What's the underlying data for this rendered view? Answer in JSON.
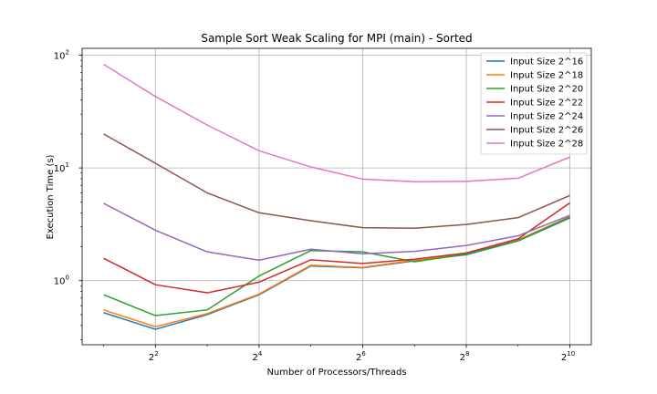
{
  "chart_data": {
    "type": "line",
    "title": "Sample Sort Weak Scaling for MPI (main) - Sorted",
    "xlabel": "Number of Processors/Threads",
    "ylabel": "Execution Time (s)",
    "x_scale": "log2",
    "y_scale": "log10",
    "xlim": [
      1.5,
      1363
    ],
    "ylim": [
      0.27,
      115
    ],
    "grid": true,
    "legend_position": "upper right",
    "x": [
      2,
      4,
      8,
      16,
      32,
      64,
      128,
      256,
      512,
      1024
    ],
    "x_ticks": [
      {
        "value": 4,
        "base": "2",
        "exp": "2"
      },
      {
        "value": 16,
        "base": "2",
        "exp": "4"
      },
      {
        "value": 64,
        "base": "2",
        "exp": "6"
      },
      {
        "value": 256,
        "base": "2",
        "exp": "8"
      },
      {
        "value": 1024,
        "base": "2",
        "exp": "10"
      }
    ],
    "y_ticks": [
      {
        "value": 1,
        "base": "10",
        "exp": "0"
      },
      {
        "value": 10,
        "base": "10",
        "exp": "1"
      },
      {
        "value": 100,
        "base": "10",
        "exp": "2"
      }
    ],
    "series": [
      {
        "name": "Input Size 2^16",
        "color": "#1f77b4",
        "values": [
          0.52,
          0.37,
          0.5,
          0.75,
          1.35,
          1.3,
          1.5,
          1.7,
          2.25,
          3.6
        ]
      },
      {
        "name": "Input Size 2^18",
        "color": "#ff7f0e",
        "values": [
          0.55,
          0.39,
          0.51,
          0.76,
          1.37,
          1.31,
          1.52,
          1.73,
          2.3,
          3.7
        ]
      },
      {
        "name": "Input Size 2^20",
        "color": "#2ca02c",
        "values": [
          0.75,
          0.49,
          0.55,
          1.1,
          1.85,
          1.8,
          1.47,
          1.72,
          2.26,
          3.65
        ]
      },
      {
        "name": "Input Size 2^22",
        "color": "#d62728",
        "values": [
          1.58,
          0.92,
          0.78,
          0.97,
          1.53,
          1.42,
          1.55,
          1.76,
          2.35,
          4.9
        ]
      },
      {
        "name": "Input Size 2^24",
        "color": "#9467bd",
        "values": [
          4.85,
          2.8,
          1.8,
          1.52,
          1.9,
          1.73,
          1.82,
          2.05,
          2.5,
          3.8
        ]
      },
      {
        "name": "Input Size 2^26",
        "color": "#8c564b",
        "values": [
          20.0,
          11.0,
          6.0,
          4.0,
          3.4,
          2.95,
          2.92,
          3.15,
          3.62,
          5.7
        ]
      },
      {
        "name": "Input Size 2^28",
        "color": "#e377c2",
        "values": [
          83.0,
          43.0,
          24.0,
          14.2,
          10.2,
          7.95,
          7.55,
          7.6,
          8.1,
          12.5
        ]
      }
    ]
  }
}
